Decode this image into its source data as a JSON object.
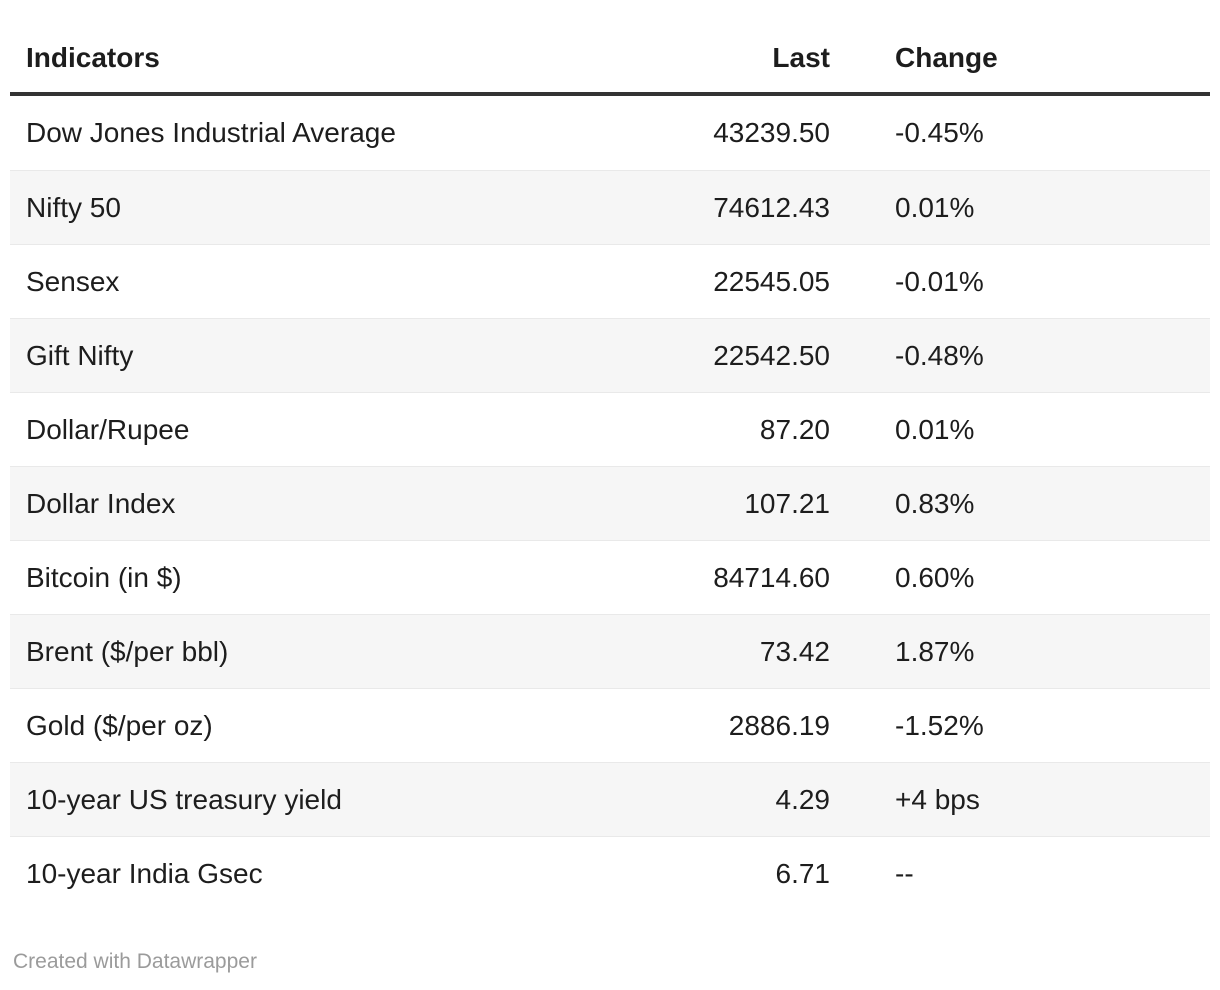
{
  "chart_data": {
    "type": "table",
    "columns": [
      "Indicators",
      "Last",
      "Change"
    ],
    "rows": [
      {
        "indicator": "Dow Jones Industrial Average",
        "last": "43239.50",
        "change": "-0.45%"
      },
      {
        "indicator": "Nifty 50",
        "last": "74612.43",
        "change": "0.01%"
      },
      {
        "indicator": "Sensex",
        "last": "22545.05",
        "change": "-0.01%"
      },
      {
        "indicator": "Gift Nifty",
        "last": "22542.50",
        "change": "-0.48%"
      },
      {
        "indicator": "Dollar/Rupee",
        "last": "87.20",
        "change": "0.01%"
      },
      {
        "indicator": "Dollar Index",
        "last": "107.21",
        "change": "0.83%"
      },
      {
        "indicator": "Bitcoin (in $)",
        "last": "84714.60",
        "change": "0.60%"
      },
      {
        "indicator": "Brent ($/per bbl)",
        "last": "73.42",
        "change": "1.87%"
      },
      {
        "indicator": "Gold ($/per oz)",
        "last": "2886.19",
        "change": "-1.52%"
      },
      {
        "indicator": "10-year US treasury yield",
        "last": "4.29",
        "change": "+4 bps"
      },
      {
        "indicator": "10-year India Gsec",
        "last": "6.71",
        "change": "--"
      }
    ],
    "layout": {
      "zebra_striping": true,
      "last_column_align": "right",
      "change_column_align": "left"
    }
  },
  "footer": {
    "attribution": "Created with Datawrapper"
  },
  "colors": {
    "text": "#1d1d1d",
    "header_rule": "#333333",
    "zebra_row": "#f6f6f6",
    "row_divider": "#e9e9e9",
    "muted_text": "#9b9b9b",
    "background": "#ffffff"
  }
}
